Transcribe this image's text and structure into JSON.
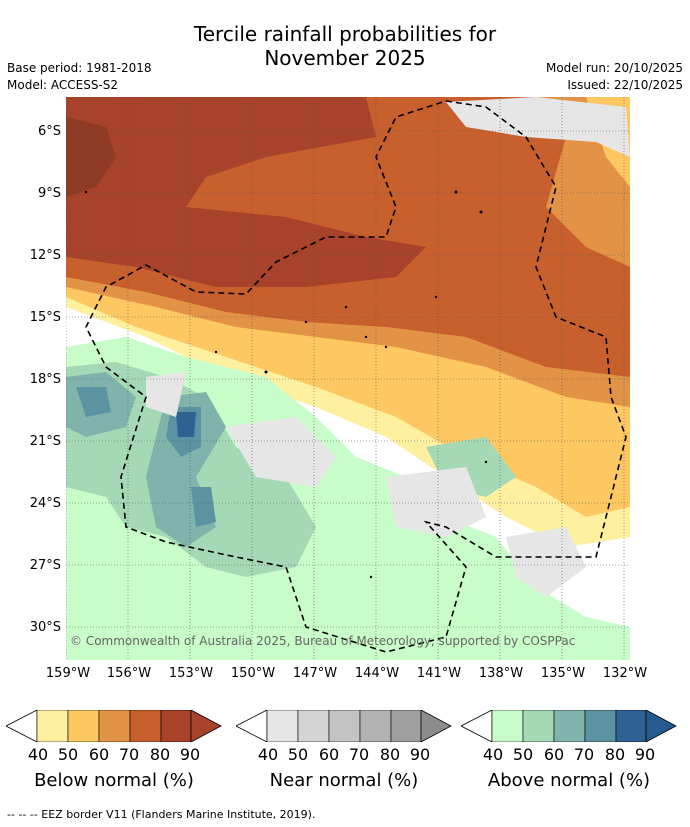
{
  "title": {
    "line1": "Tercile rainfall probabilities for",
    "line2": "November 2025"
  },
  "meta": {
    "base_period": "Base period: 1981-2018",
    "model": "Model: ACCESS-S2",
    "model_run": "Model run: 20/10/2025",
    "issued": "Issued: 22/10/2025"
  },
  "map": {
    "lat_labels": [
      "6°S",
      "9°S",
      "12°S",
      "15°S",
      "18°S",
      "21°S",
      "24°S",
      "27°S",
      "30°S"
    ],
    "lon_labels": [
      "159°W",
      "156°W",
      "153°W",
      "150°W",
      "147°W",
      "144°W",
      "141°W",
      "138°W",
      "135°W",
      "132°W"
    ],
    "copyright": "© Commonwealth of Australia 2025, Bureau of Meteorology, supported by COSPPac"
  },
  "legend": {
    "tick_labels": [
      "40",
      "50",
      "60",
      "70",
      "80",
      "90"
    ],
    "below": {
      "label": "Below normal (%)",
      "colors": [
        "#fff0a0",
        "#fdc862",
        "#e39345",
        "#c8602e",
        "#a6432a",
        "#a6432a"
      ]
    },
    "near": {
      "label": "Near normal (%)",
      "colors": [
        "#e6e6e6",
        "#d4d4d4",
        "#c3c3c3",
        "#b2b2b2",
        "#a0a0a0",
        "#8c8c8c"
      ]
    },
    "above": {
      "label": "Above normal (%)",
      "colors": [
        "#c8fcc8",
        "#a5d9b5",
        "#7fb3ab",
        "#5b93a3",
        "#2e6293",
        "#245a8c"
      ]
    }
  },
  "footer": "--  --  -- EEZ border V11 (Flanders Marine Institute, 2019)."
}
